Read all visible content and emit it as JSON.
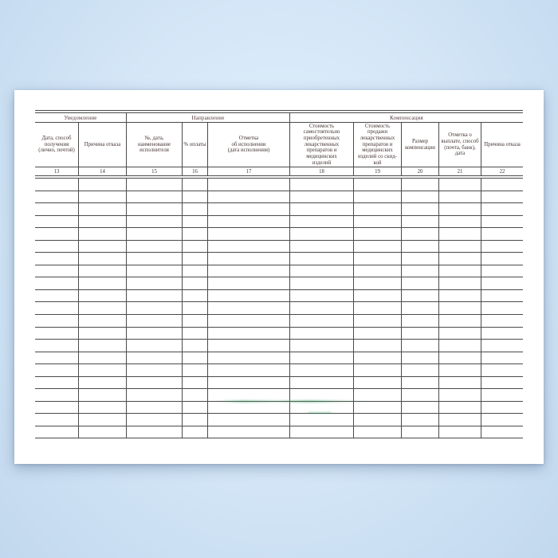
{
  "document": {
    "kind": "scanned-blank-journal-form",
    "groups": [
      {
        "label": "Уведомление"
      },
      {
        "label": "Направление"
      },
      {
        "label": "Компенсация"
      }
    ],
    "columns": [
      {
        "number": "13",
        "header": "Дата, способ\nполучения\n(лично, почтой)"
      },
      {
        "number": "14",
        "header": "Причина отказа"
      },
      {
        "number": "15",
        "header": "№, дата,\nнаименование\nисполнителя"
      },
      {
        "number": "16",
        "header": "% оплаты"
      },
      {
        "number": "17",
        "header": "Отметка\nоб исполнении\n(дата исполнения)"
      },
      {
        "number": "18",
        "header": "Стоимость\nсамостоятельно\nприобретенных\nлекарственных\nпрепаратов и\nмедицинских\nизделий"
      },
      {
        "number": "19",
        "header": "Стоимость\nпродажи\nлекарственных\nпрепаратов и\nмедицинских\nизделий со скид-\nкой"
      },
      {
        "number": "20",
        "header": "Размер\nкомпенсации"
      },
      {
        "number": "21",
        "header": "Отметка о\nвыплате, способ\n(почта, банк),\nдата"
      },
      {
        "number": "22",
        "header": "Причина отказа"
      }
    ],
    "empty_row_count": 21,
    "colors": {
      "background_blue": "#cfe3f5",
      "page_white": "#ffffff",
      "line": "#4a4a4a",
      "text": "#453432",
      "watermark_green": "#3f9e63"
    }
  }
}
